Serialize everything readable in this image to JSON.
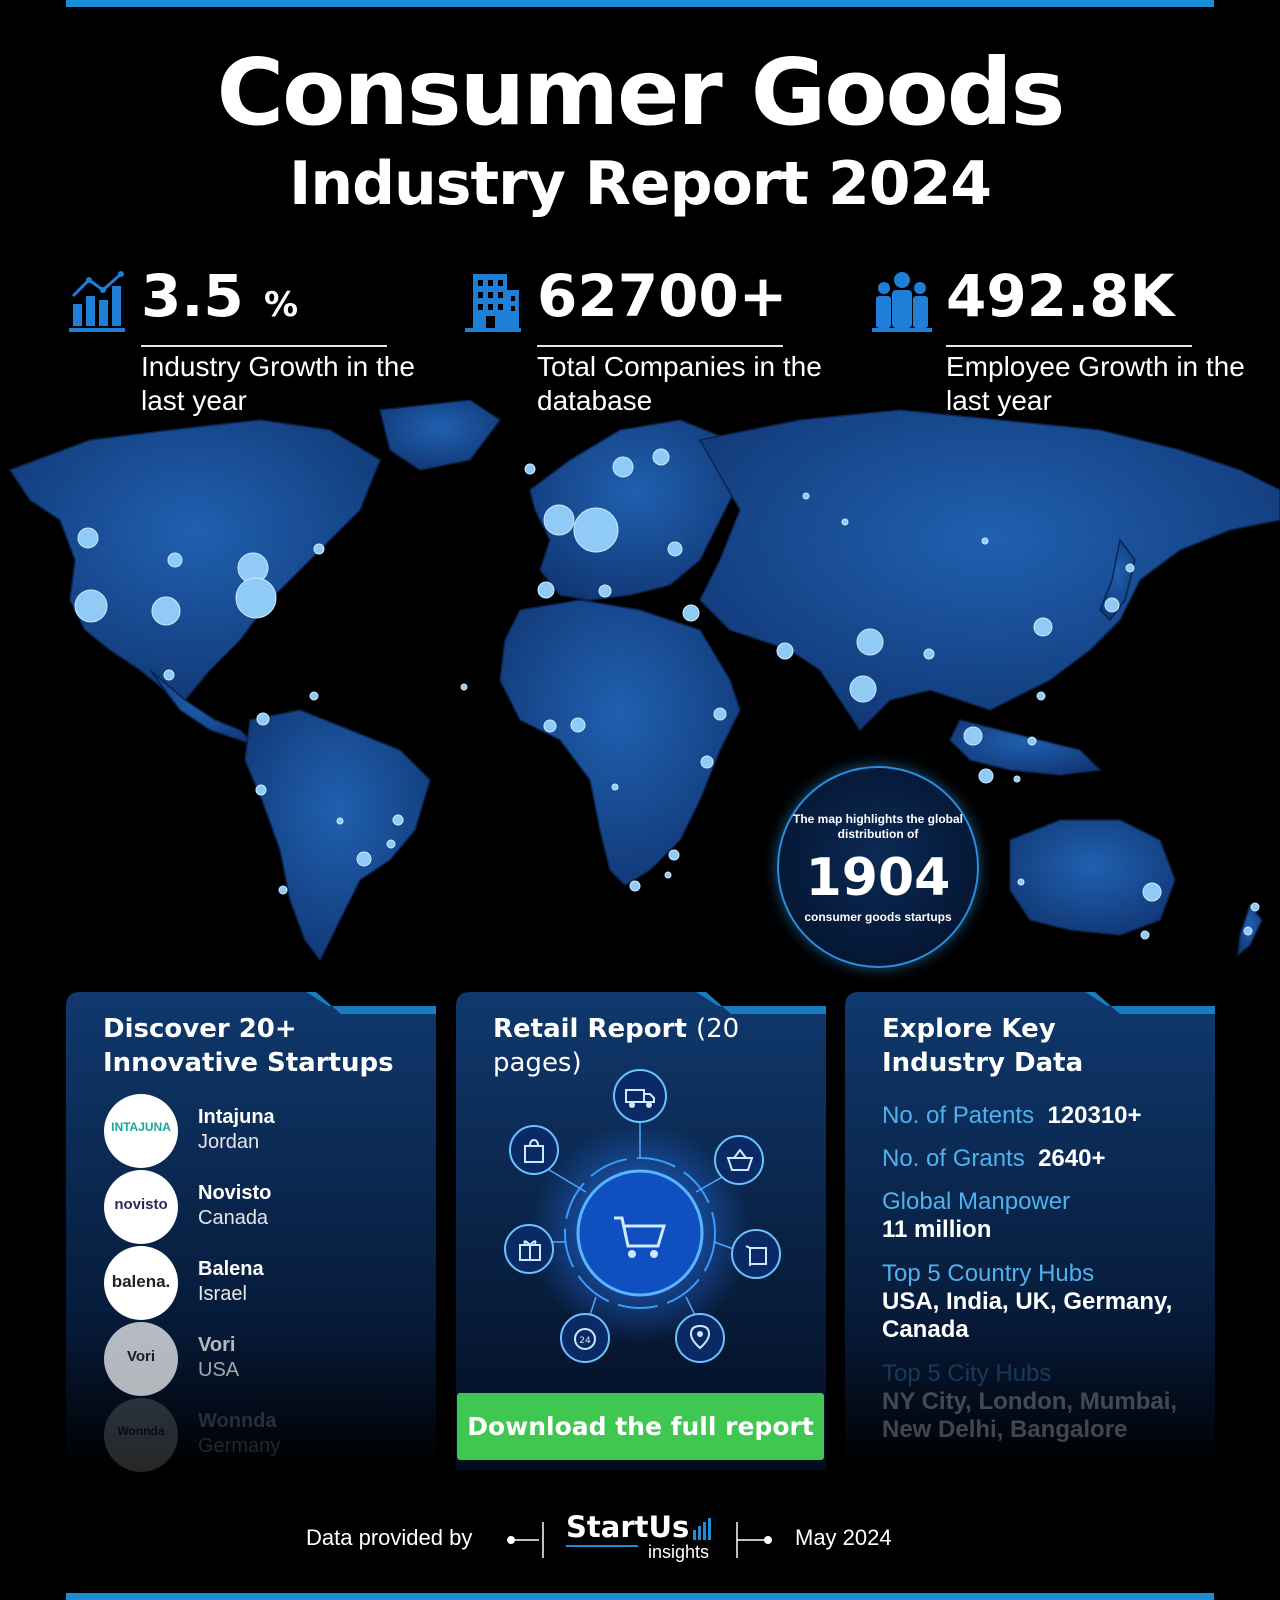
{
  "header": {
    "title": "Consumer Goods",
    "subtitle": "Industry Report 2024"
  },
  "stats": [
    {
      "value": "3.5",
      "unit": "%",
      "description": "Industry Growth in the last year",
      "icon": "growth-chart-icon"
    },
    {
      "value": "62700+",
      "unit": "",
      "description": "Total Companies in the database",
      "icon": "building-icon"
    },
    {
      "value": "492.8K",
      "unit": "",
      "description": "Employee Growth in the last year",
      "icon": "people-icon"
    }
  ],
  "map_badge": {
    "line1": "The map highlights the global distribution of",
    "count": "1904",
    "line2": "consumer goods startups"
  },
  "startups_card": {
    "heading": "Discover 20+ Innovative Startups",
    "items": [
      {
        "logo": "INTAJUNA",
        "name": "Intajuna",
        "country": "Jordan"
      },
      {
        "logo": "novisto",
        "name": "Novisto",
        "country": "Canada"
      },
      {
        "logo": "balena.",
        "name": "Balena",
        "country": "Israel"
      },
      {
        "logo": "Vori",
        "name": "Vori",
        "country": "USA"
      },
      {
        "logo": "Wonnda",
        "name": "Wonnda",
        "country": "Germany"
      }
    ]
  },
  "report_card": {
    "heading_bold": "Retail Report",
    "heading_light": "(20 pages)",
    "icons": [
      "delivery-truck-icon",
      "shopping-bag-icon",
      "basket-icon",
      "shopping-cart-icon",
      "gift-icon",
      "package-icon",
      "support-24-icon",
      "location-map-icon"
    ],
    "download_label": "Download the full report"
  },
  "data_card": {
    "heading": "Explore Key Industry Data",
    "patents_label": "No. of Patents",
    "patents_value": "120310+",
    "grants_label": "No. of Grants",
    "grants_value": "2640+",
    "manpower_label": "Global Manpower",
    "manpower_value": "11 million",
    "country_hubs_label": "Top 5 Country Hubs",
    "country_hubs_value": "USA, India, UK, Germany, Canada",
    "city_hubs_label": "Top 5 City Hubs",
    "city_hubs_value": "NY City, London, Mumbai, New Delhi, Bangalore"
  },
  "footer": {
    "provided_by": "Data provided by",
    "brand": "StartUs",
    "brand_sub": "insights",
    "date": "May 2024"
  },
  "colors": {
    "accent": "#1a8fd8",
    "map": "#1b4c93",
    "dot": "#8fcbf5",
    "download": "#3fc752",
    "data_label": "#4fb2ee"
  }
}
